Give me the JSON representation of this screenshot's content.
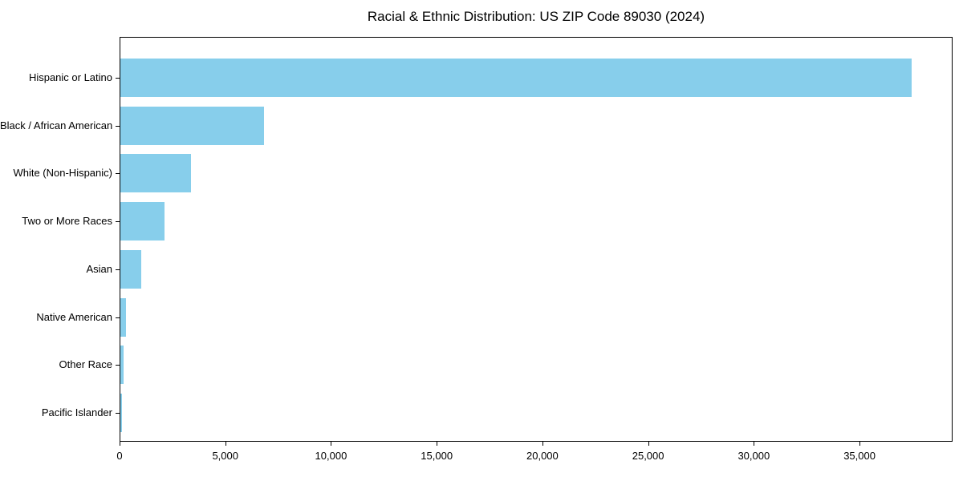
{
  "chart_data": {
    "type": "bar",
    "orientation": "horizontal",
    "title": "Racial & Ethnic Distribution: US ZIP Code 89030 (2024)",
    "categories": [
      "Hispanic or Latino",
      "Black / African American",
      "White (Non-Hispanic)",
      "Two or More Races",
      "Asian",
      "Native American",
      "Other Race",
      "Pacific Islander"
    ],
    "values": [
      37500,
      6800,
      3350,
      2100,
      1000,
      250,
      150,
      90
    ],
    "bar_color": "#87CEEB",
    "xlabel": "",
    "ylabel": "",
    "xlim": [
      0,
      39400
    ],
    "xticks": [
      {
        "value": 0,
        "label": "0"
      },
      {
        "value": 5000,
        "label": "5,000"
      },
      {
        "value": 10000,
        "label": "10,000"
      },
      {
        "value": 15000,
        "label": "15,000"
      },
      {
        "value": 20000,
        "label": "20,000"
      },
      {
        "value": 25000,
        "label": "25,000"
      },
      {
        "value": 30000,
        "label": "30,000"
      },
      {
        "value": 35000,
        "label": "35,000"
      }
    ],
    "grid": false,
    "legend": null
  }
}
